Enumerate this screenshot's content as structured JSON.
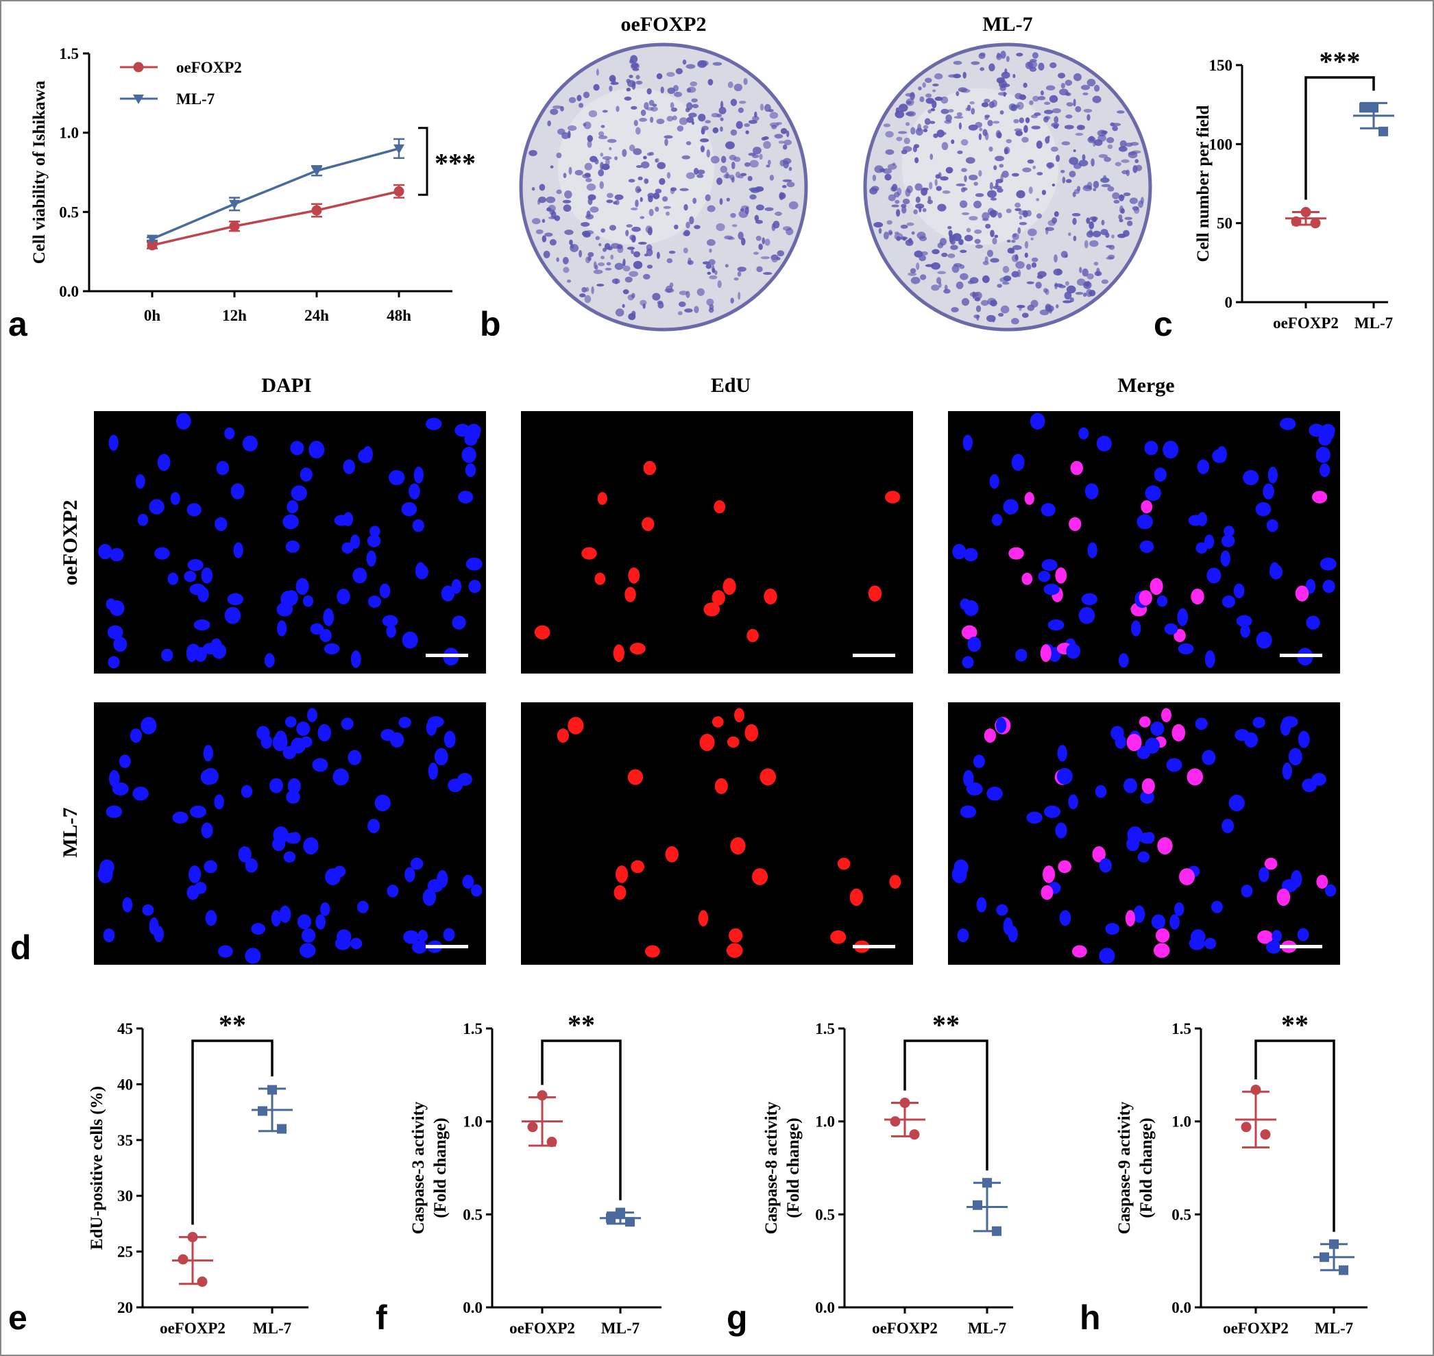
{
  "colors": {
    "oe": "#c0444c",
    "ml": "#4a6a9e",
    "dapi": "#1414ff",
    "edu": "#ff1a1a",
    "merge": "#ff28f0"
  },
  "panel_labels": [
    "a",
    "b",
    "c",
    "d",
    "e",
    "f",
    "g",
    "h"
  ],
  "panel_b": {
    "titles": [
      "oeFOXP2",
      "ML-7"
    ]
  },
  "panel_d": {
    "columns": [
      "DAPI",
      "EdU",
      "Merge"
    ],
    "rows": [
      "oeFOXP2",
      "ML-7"
    ]
  },
  "chart_data": [
    {
      "id": "a",
      "type": "line",
      "ylabel": "Cell viability of Ishikawa",
      "xlabel": "",
      "categories": [
        "0h",
        "12h",
        "24h",
        "48h"
      ],
      "ylim": [
        0.0,
        1.5
      ],
      "yticks": [
        "0.0",
        "0.5",
        "1.0",
        "1.5"
      ],
      "series": [
        {
          "name": "oeFOXP2",
          "marker": "circle",
          "values": [
            0.29,
            0.41,
            0.51,
            0.63
          ],
          "err": [
            0.02,
            0.03,
            0.04,
            0.04
          ]
        },
        {
          "name": "ML-7",
          "marker": "triangle-down",
          "values": [
            0.33,
            0.55,
            0.76,
            0.9
          ],
          "err": [
            0.01,
            0.04,
            0.03,
            0.06
          ]
        }
      ],
      "legend": "top-left",
      "significance": "***"
    },
    {
      "id": "c",
      "type": "scatter",
      "ylabel": "Cell number per field",
      "categories": [
        "oeFOXP2",
        "ML-7"
      ],
      "ylim": [
        0,
        150
      ],
      "yticks": [
        "0",
        "50",
        "100",
        "150"
      ],
      "series": [
        {
          "name": "oeFOXP2",
          "points": [
            57,
            51,
            50
          ],
          "mean": 53,
          "sd": 4
        },
        {
          "name": "ML-7",
          "points": [
            123,
            123,
            108
          ],
          "mean": 118,
          "sd": 8
        }
      ],
      "significance": "***"
    },
    {
      "id": "e",
      "type": "scatter",
      "ylabel": "EdU-positive cells (%)",
      "categories": [
        "oeFOXP2",
        "ML-7"
      ],
      "ylim": [
        20,
        45
      ],
      "yticks": [
        "20",
        "25",
        "30",
        "35",
        "40",
        "45"
      ],
      "series": [
        {
          "name": "oeFOXP2",
          "points": [
            26.3,
            24.3,
            22.3
          ],
          "mean": 24.2,
          "sd": 2.1
        },
        {
          "name": "ML-7",
          "points": [
            39.5,
            37.6,
            36.0
          ],
          "mean": 37.7,
          "sd": 1.9
        }
      ],
      "significance": "**"
    },
    {
      "id": "f",
      "type": "scatter",
      "ylabel": [
        "Caspase-3 activity",
        "(Fold change)"
      ],
      "categories": [
        "oeFOXP2",
        "ML-7"
      ],
      "ylim": [
        0.0,
        1.5
      ],
      "yticks": [
        "0.0",
        "0.5",
        "1.0",
        "1.5"
      ],
      "series": [
        {
          "name": "oeFOXP2",
          "points": [
            1.14,
            0.97,
            0.89
          ],
          "mean": 1.0,
          "sd": 0.13
        },
        {
          "name": "ML-7",
          "points": [
            0.51,
            0.48,
            0.46
          ],
          "mean": 0.48,
          "sd": 0.03
        }
      ],
      "significance": "**"
    },
    {
      "id": "g",
      "type": "scatter",
      "ylabel": [
        "Caspase-8 activity",
        "(Fold change)"
      ],
      "categories": [
        "oeFOXP2",
        "ML-7"
      ],
      "ylim": [
        0.0,
        1.5
      ],
      "yticks": [
        "0.0",
        "0.5",
        "1.0",
        "1.5"
      ],
      "series": [
        {
          "name": "oeFOXP2",
          "points": [
            1.1,
            1.0,
            0.93
          ],
          "mean": 1.01,
          "sd": 0.09
        },
        {
          "name": "ML-7",
          "points": [
            0.67,
            0.55,
            0.41
          ],
          "mean": 0.54,
          "sd": 0.13
        }
      ],
      "significance": "**"
    },
    {
      "id": "h",
      "type": "scatter",
      "ylabel": [
        "Caspase-9 activity",
        "(Fold change)"
      ],
      "categories": [
        "oeFOXP2",
        "ML-7"
      ],
      "ylim": [
        0.0,
        1.5
      ],
      "yticks": [
        "0.0",
        "0.5",
        "1.0",
        "1.5"
      ],
      "series": [
        {
          "name": "oeFOXP2",
          "points": [
            1.17,
            0.97,
            0.93
          ],
          "mean": 1.01,
          "sd": 0.15
        },
        {
          "name": "ML-7",
          "points": [
            0.34,
            0.27,
            0.2
          ],
          "mean": 0.27,
          "sd": 0.07
        }
      ],
      "significance": "**"
    }
  ]
}
